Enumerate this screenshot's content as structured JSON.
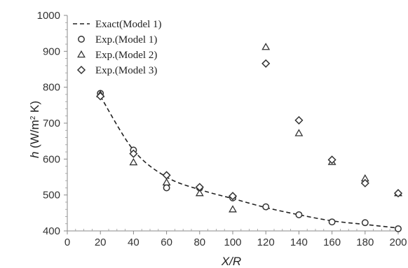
{
  "chart_data": {
    "type": "scatter",
    "title": "",
    "xlabel_var": "X/R",
    "ylabel_var": "h",
    "ylabel_unit_prefix": " (W/m",
    "ylabel_unit_sup": "2",
    "ylabel_unit_suffix": " K)",
    "xlim": [
      0,
      200
    ],
    "ylim": [
      400,
      1000
    ],
    "x_ticks": [
      0,
      20,
      40,
      60,
      80,
      100,
      120,
      140,
      160,
      180,
      200
    ],
    "y_ticks": [
      400,
      500,
      600,
      700,
      800,
      900,
      1000
    ],
    "grid": false,
    "legend_position": "top-left",
    "series": [
      {
        "name": "Exact(Model 1)",
        "style": "dashed-line",
        "x": [
          20,
          40,
          60,
          80,
          100,
          120,
          140,
          160,
          180,
          200
        ],
        "y": [
          775,
          625,
          550,
          515,
          490,
          465,
          445,
          428,
          418,
          408
        ]
      },
      {
        "name": "Exp.(Model 1)",
        "style": "circle",
        "x": [
          20,
          40,
          60,
          80,
          100,
          120,
          140,
          160,
          180,
          200
        ],
        "y": [
          783,
          625,
          520,
          520,
          492,
          467,
          445,
          425,
          423,
          406
        ]
      },
      {
        "name": "Exp.(Model 2)",
        "style": "triangle",
        "x": [
          20,
          40,
          60,
          80,
          100,
          120,
          140,
          160,
          180,
          200
        ],
        "y": [
          780,
          591,
          535,
          505,
          460,
          912,
          672,
          592,
          546,
          505
        ]
      },
      {
        "name": "Exp.(Model 3)",
        "style": "diamond",
        "x": [
          20,
          40,
          60,
          80,
          100,
          120,
          140,
          160,
          180,
          200
        ],
        "y": [
          775,
          615,
          555,
          522,
          497,
          866,
          708,
          598,
          533,
          505
        ]
      }
    ]
  }
}
